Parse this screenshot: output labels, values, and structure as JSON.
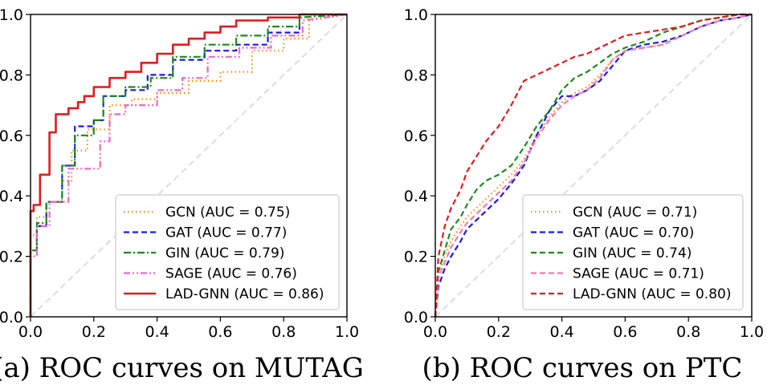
{
  "chart_data": [
    {
      "type": "line",
      "caption": "(a) ROC curves on MUTAG",
      "xlim": [
        0,
        1
      ],
      "ylim": [
        0,
        1
      ],
      "xticks": [
        "0.0",
        "0.2",
        "0.4",
        "0.6",
        "0.8",
        "1.0"
      ],
      "yticks": [
        "0.0",
        "0.2",
        "0.4",
        "0.6",
        "0.8",
        "1.0"
      ],
      "grid": false,
      "legend_position": "lower-right",
      "diagonal": {
        "x": [
          0,
          1
        ],
        "y": [
          0,
          1
        ],
        "color": "#dddddd",
        "style": "dashed"
      },
      "series": [
        {
          "name": "GCN (AUC = 0.75)",
          "color": "#ff8c1a",
          "style": "dotted",
          "x": [
            0,
            0,
            0.02,
            0.02,
            0.05,
            0.05,
            0.1,
            0.1,
            0.13,
            0.13,
            0.18,
            0.18,
            0.25,
            0.25,
            0.32,
            0.32,
            0.4,
            0.4,
            0.5,
            0.5,
            0.6,
            0.6,
            0.7,
            0.7,
            0.8,
            0.8,
            0.88,
            0.88,
            1
          ],
          "y": [
            0,
            0.27,
            0.27,
            0.33,
            0.33,
            0.38,
            0.38,
            0.45,
            0.45,
            0.55,
            0.55,
            0.62,
            0.62,
            0.7,
            0.7,
            0.72,
            0.72,
            0.74,
            0.74,
            0.78,
            0.78,
            0.81,
            0.81,
            0.88,
            0.88,
            0.92,
            0.92,
            0.98,
            1
          ]
        },
        {
          "name": "GAT (AUC = 0.77)",
          "color": "#1a1aee",
          "style": "dashed",
          "x": [
            0,
            0,
            0.02,
            0.02,
            0.05,
            0.05,
            0.1,
            0.1,
            0.14,
            0.14,
            0.2,
            0.2,
            0.23,
            0.23,
            0.3,
            0.3,
            0.37,
            0.37,
            0.45,
            0.45,
            0.55,
            0.55,
            0.65,
            0.65,
            0.75,
            0.75,
            0.85,
            0.85,
            1
          ],
          "y": [
            0,
            0.22,
            0.22,
            0.3,
            0.3,
            0.38,
            0.38,
            0.5,
            0.5,
            0.63,
            0.63,
            0.65,
            0.65,
            0.73,
            0.73,
            0.75,
            0.75,
            0.8,
            0.8,
            0.85,
            0.85,
            0.88,
            0.88,
            0.9,
            0.9,
            0.94,
            0.94,
            1,
            1
          ]
        },
        {
          "name": "GIN (AUC = 0.79)",
          "color": "#1f8a1f",
          "style": "dashdot",
          "x": [
            0,
            0,
            0.02,
            0.02,
            0.05,
            0.05,
            0.1,
            0.1,
            0.14,
            0.14,
            0.2,
            0.2,
            0.23,
            0.23,
            0.3,
            0.3,
            0.38,
            0.38,
            0.45,
            0.45,
            0.55,
            0.55,
            0.65,
            0.65,
            0.75,
            0.75,
            0.85,
            0.85,
            1
          ],
          "y": [
            0,
            0.22,
            0.22,
            0.31,
            0.31,
            0.38,
            0.38,
            0.5,
            0.5,
            0.6,
            0.6,
            0.65,
            0.65,
            0.73,
            0.73,
            0.76,
            0.76,
            0.79,
            0.79,
            0.86,
            0.86,
            0.9,
            0.9,
            0.93,
            0.93,
            0.96,
            0.96,
            0.99,
            1
          ]
        },
        {
          "name": "SAGE (AUC = 0.76)",
          "color": "#ee66c8",
          "style": "dashdotdot",
          "x": [
            0,
            0,
            0.02,
            0.02,
            0.06,
            0.06,
            0.12,
            0.12,
            0.16,
            0.16,
            0.22,
            0.22,
            0.25,
            0.25,
            0.3,
            0.3,
            0.4,
            0.4,
            0.48,
            0.48,
            0.56,
            0.56,
            0.66,
            0.66,
            0.76,
            0.76,
            0.86,
            0.86,
            1
          ],
          "y": [
            0,
            0.2,
            0.2,
            0.3,
            0.3,
            0.38,
            0.38,
            0.49,
            0.49,
            0.49,
            0.49,
            0.58,
            0.58,
            0.67,
            0.67,
            0.7,
            0.7,
            0.75,
            0.75,
            0.79,
            0.79,
            0.86,
            0.86,
            0.89,
            0.89,
            0.93,
            0.93,
            0.98,
            1
          ]
        },
        {
          "name": "LAD-GNN (AUC = 0.86)",
          "color": "#e31a1c",
          "style": "solid",
          "x": [
            0,
            0,
            0.01,
            0.01,
            0.03,
            0.03,
            0.06,
            0.06,
            0.08,
            0.08,
            0.12,
            0.12,
            0.15,
            0.15,
            0.17,
            0.17,
            0.2,
            0.2,
            0.25,
            0.25,
            0.3,
            0.3,
            0.35,
            0.35,
            0.4,
            0.4,
            0.45,
            0.45,
            0.5,
            0.5,
            0.55,
            0.55,
            0.6,
            0.6,
            0.65,
            0.65,
            0.75,
            0.75,
            0.85,
            0.85,
            1
          ],
          "y": [
            0,
            0.35,
            0.35,
            0.37,
            0.37,
            0.47,
            0.47,
            0.61,
            0.61,
            0.67,
            0.67,
            0.69,
            0.69,
            0.71,
            0.71,
            0.73,
            0.73,
            0.76,
            0.76,
            0.79,
            0.79,
            0.81,
            0.81,
            0.84,
            0.84,
            0.87,
            0.87,
            0.9,
            0.9,
            0.92,
            0.92,
            0.94,
            0.94,
            0.96,
            0.96,
            0.98,
            0.98,
            0.99,
            0.99,
            1,
            1
          ]
        }
      ]
    },
    {
      "type": "line",
      "caption": "(b) ROC curves on PTC",
      "xlim": [
        0,
        1
      ],
      "ylim": [
        0,
        1
      ],
      "xticks": [
        "0.0",
        "0.2",
        "0.4",
        "0.6",
        "0.8",
        "1.0"
      ],
      "yticks": [
        "0.0",
        "0.2",
        "0.4",
        "0.6",
        "0.8",
        "1.0"
      ],
      "grid": false,
      "legend_position": "lower-right",
      "diagonal": {
        "x": [
          0,
          1
        ],
        "y": [
          0,
          1
        ],
        "color": "#dddddd",
        "style": "dashed"
      },
      "series": [
        {
          "name": "GCN (AUC = 0.71)",
          "color": "#ff8c1a",
          "style": "dotted",
          "x": [
            0,
            0.01,
            0.03,
            0.05,
            0.08,
            0.1,
            0.13,
            0.16,
            0.2,
            0.24,
            0.28,
            0.32,
            0.36,
            0.4,
            0.44,
            0.48,
            0.52,
            0.56,
            0.6,
            0.66,
            0.72,
            0.78,
            0.84,
            0.9,
            0.96,
            1
          ],
          "y": [
            0,
            0.14,
            0.2,
            0.25,
            0.3,
            0.33,
            0.36,
            0.39,
            0.43,
            0.47,
            0.52,
            0.6,
            0.66,
            0.71,
            0.74,
            0.76,
            0.8,
            0.85,
            0.88,
            0.89,
            0.9,
            0.93,
            0.96,
            0.98,
            0.99,
            1
          ]
        },
        {
          "name": "GAT (AUC = 0.70)",
          "color": "#1a1aee",
          "style": "dashed",
          "x": [
            0,
            0.01,
            0.03,
            0.05,
            0.08,
            0.1,
            0.13,
            0.16,
            0.2,
            0.24,
            0.28,
            0.32,
            0.36,
            0.4,
            0.44,
            0.48,
            0.52,
            0.56,
            0.6,
            0.66,
            0.72,
            0.78,
            0.84,
            0.9,
            0.96,
            1
          ],
          "y": [
            0,
            0.1,
            0.16,
            0.2,
            0.25,
            0.29,
            0.32,
            0.35,
            0.39,
            0.44,
            0.5,
            0.6,
            0.68,
            0.73,
            0.73,
            0.75,
            0.78,
            0.83,
            0.88,
            0.9,
            0.91,
            0.93,
            0.96,
            0.98,
            0.99,
            1
          ]
        },
        {
          "name": "GIN (AUC = 0.74)",
          "color": "#1f8a1f",
          "style": "dashed",
          "x": [
            0,
            0.01,
            0.03,
            0.05,
            0.08,
            0.1,
            0.13,
            0.16,
            0.2,
            0.24,
            0.28,
            0.32,
            0.36,
            0.4,
            0.44,
            0.48,
            0.52,
            0.56,
            0.6,
            0.66,
            0.72,
            0.78,
            0.84,
            0.9,
            0.96,
            1
          ],
          "y": [
            0,
            0.15,
            0.22,
            0.29,
            0.33,
            0.37,
            0.42,
            0.45,
            0.47,
            0.5,
            0.56,
            0.63,
            0.68,
            0.75,
            0.79,
            0.81,
            0.84,
            0.87,
            0.89,
            0.91,
            0.94,
            0.96,
            0.98,
            0.99,
            1,
            1
          ]
        },
        {
          "name": "SAGE (AUC = 0.71)",
          "color": "#f07ab8",
          "style": "dashed",
          "x": [
            0,
            0.01,
            0.03,
            0.05,
            0.08,
            0.1,
            0.13,
            0.16,
            0.2,
            0.24,
            0.28,
            0.32,
            0.36,
            0.4,
            0.44,
            0.48,
            0.52,
            0.56,
            0.6,
            0.66,
            0.72,
            0.78,
            0.84,
            0.9,
            0.96,
            1
          ],
          "y": [
            0,
            0.13,
            0.18,
            0.23,
            0.28,
            0.31,
            0.34,
            0.37,
            0.41,
            0.45,
            0.51,
            0.59,
            0.65,
            0.7,
            0.73,
            0.75,
            0.79,
            0.85,
            0.88,
            0.89,
            0.9,
            0.93,
            0.96,
            0.98,
            0.99,
            1
          ]
        },
        {
          "name": "LAD-GNN (AUC = 0.80)",
          "color": "#e31a1c",
          "style": "dashed",
          "x": [
            0,
            0.01,
            0.03,
            0.05,
            0.08,
            0.1,
            0.13,
            0.16,
            0.2,
            0.24,
            0.28,
            0.32,
            0.36,
            0.4,
            0.44,
            0.48,
            0.52,
            0.56,
            0.6,
            0.66,
            0.72,
            0.78,
            0.84,
            0.9,
            0.96,
            1
          ],
          "y": [
            0,
            0.2,
            0.3,
            0.36,
            0.42,
            0.48,
            0.53,
            0.58,
            0.63,
            0.7,
            0.78,
            0.8,
            0.82,
            0.84,
            0.86,
            0.87,
            0.89,
            0.91,
            0.93,
            0.94,
            0.95,
            0.96,
            0.98,
            0.99,
            1,
            1
          ]
        }
      ]
    }
  ]
}
